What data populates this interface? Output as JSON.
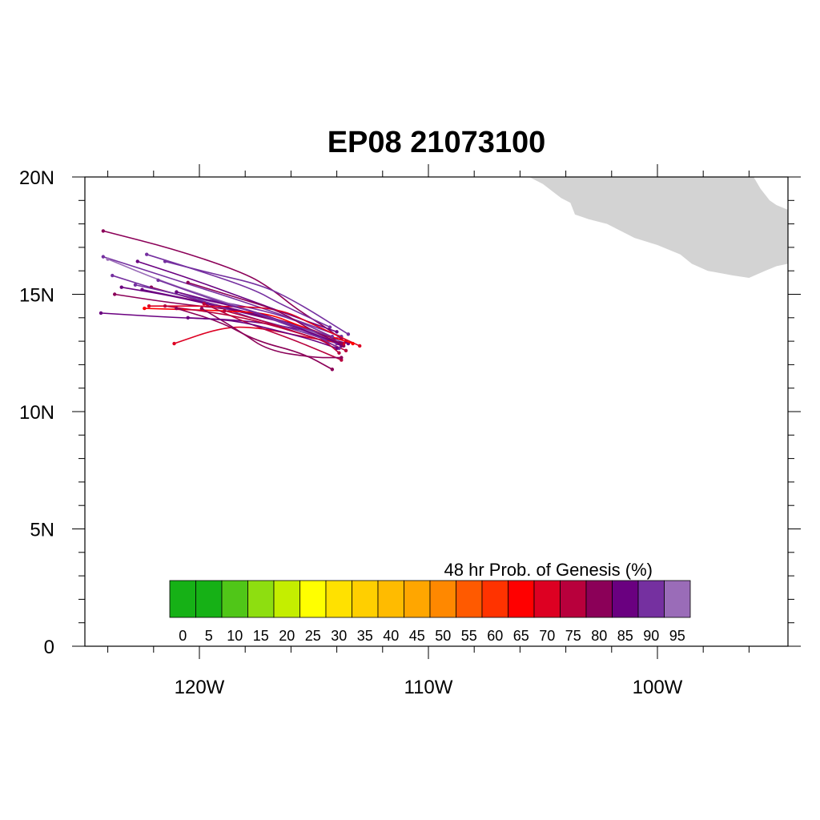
{
  "title": "EP08 21073100",
  "map": {
    "lon_range": [
      -125,
      -94.3
    ],
    "lat_range": [
      0,
      20
    ],
    "lat_labels": [
      "0",
      "5N",
      "10N",
      "15N",
      "20N"
    ],
    "lat_values": [
      0,
      5,
      10,
      15,
      20
    ],
    "lon_labels": [
      "120W",
      "110W",
      "100W"
    ],
    "lon_values": [
      -120,
      -110,
      -100
    ],
    "land_color": "#d3d3d3",
    "land_outline": [
      [
        -105.6,
        20
      ],
      [
        -105.0,
        19.7
      ],
      [
        -104.6,
        19.4
      ],
      [
        -104.2,
        19.1
      ],
      [
        -103.8,
        18.9
      ],
      [
        -103.6,
        18.4
      ],
      [
        -103.0,
        18.2
      ],
      [
        -102.2,
        18.0
      ],
      [
        -101.6,
        17.7
      ],
      [
        -101.0,
        17.4
      ],
      [
        -100.0,
        17.1
      ],
      [
        -99.0,
        16.7
      ],
      [
        -98.5,
        16.3
      ],
      [
        -97.8,
        16.0
      ],
      [
        -96.7,
        15.8
      ],
      [
        -96.0,
        15.7
      ],
      [
        -95.3,
        16.0
      ],
      [
        -94.8,
        16.2
      ],
      [
        -94.3,
        16.3
      ],
      [
        -94.3,
        18.6
      ],
      [
        -94.8,
        18.8
      ],
      [
        -95.1,
        19.0
      ],
      [
        -95.5,
        19.5
      ],
      [
        -95.8,
        20
      ]
    ]
  },
  "legend": {
    "title": "48 hr Prob. of Genesis (%)",
    "labels": [
      "0",
      "5",
      "10",
      "15",
      "20",
      "25",
      "30",
      "35",
      "40",
      "45",
      "50",
      "55",
      "60",
      "65",
      "70",
      "75",
      "80",
      "85",
      "90",
      "95"
    ],
    "colors": [
      "#16b116",
      "#16b116",
      "#50c618",
      "#8ede10",
      "#c4ee00",
      "#ffff00",
      "#ffe100",
      "#ffcf00",
      "#ffbb00",
      "#ffa600",
      "#ff8800",
      "#ff5a00",
      "#ff3300",
      "#ff0000",
      "#dd0022",
      "#b8003c",
      "#8b0058",
      "#6a0080",
      "#7530a0",
      "#9a6cb8"
    ]
  },
  "tracks": [
    {
      "color": "#8b0058",
      "points": [
        [
          -124.2,
          17.7
        ],
        [
          -121.0,
          16.9
        ],
        [
          -118.0,
          15.9
        ],
        [
          -116.8,
          15.2
        ],
        [
          -115.8,
          14.4
        ],
        [
          -114.5,
          13.6
        ],
        [
          -113.8,
          13.1
        ]
      ]
    },
    {
      "color": "#7530a0",
      "points": [
        [
          -124.2,
          16.6
        ],
        [
          -121.0,
          15.6
        ],
        [
          -117.5,
          14.5
        ],
        [
          -115.5,
          13.8
        ],
        [
          -113.8,
          13.2
        ]
      ]
    },
    {
      "color": "#6a0080",
      "points": [
        [
          -124.3,
          14.2
        ],
        [
          -121.0,
          14.0
        ],
        [
          -118.0,
          13.9
        ],
        [
          -115.5,
          13.5
        ],
        [
          -113.6,
          13.0
        ]
      ]
    },
    {
      "color": "#7530a0",
      "points": [
        [
          -123.8,
          15.8
        ],
        [
          -121.2,
          15.0
        ],
        [
          -118.5,
          14.6
        ],
        [
          -116.0,
          14.0
        ],
        [
          -114.0,
          13.1
        ]
      ]
    },
    {
      "color": "#8b0058",
      "points": [
        [
          -123.7,
          15.0
        ],
        [
          -121.0,
          14.6
        ],
        [
          -118.0,
          14.3
        ],
        [
          -115.0,
          13.5
        ],
        [
          -113.7,
          12.9
        ]
      ]
    },
    {
      "color": "#6a0080",
      "points": [
        [
          -123.4,
          15.3
        ],
        [
          -121.0,
          14.9
        ],
        [
          -118.0,
          14.2
        ],
        [
          -115.5,
          13.6
        ],
        [
          -113.8,
          12.8
        ]
      ]
    },
    {
      "color": "#7530a0",
      "points": [
        [
          -122.3,
          16.7
        ],
        [
          -120.0,
          16.0
        ],
        [
          -117.6,
          15.2
        ],
        [
          -116.5,
          14.6
        ],
        [
          -114.3,
          13.6
        ]
      ]
    },
    {
      "color": "#7530a0",
      "points": [
        [
          -121.5,
          16.4
        ],
        [
          -119.5,
          15.9
        ],
        [
          -117.3,
          15.4
        ],
        [
          -115.8,
          14.7
        ],
        [
          -113.5,
          13.3
        ]
      ]
    },
    {
      "color": "#6a0080",
      "points": [
        [
          -122.7,
          16.4
        ],
        [
          -120.5,
          15.7
        ],
        [
          -118.5,
          15.0
        ],
        [
          -116.0,
          14.1
        ],
        [
          -114.0,
          13.4
        ]
      ]
    },
    {
      "color": "#8b0058",
      "points": [
        [
          -122.1,
          15.3
        ],
        [
          -119.5,
          14.6
        ],
        [
          -117.0,
          14.0
        ],
        [
          -115.0,
          13.4
        ],
        [
          -113.7,
          12.8
        ]
      ]
    },
    {
      "color": "#6a0080",
      "points": [
        [
          -122.5,
          15.2
        ],
        [
          -119.0,
          14.5
        ],
        [
          -116.5,
          13.9
        ],
        [
          -114.8,
          13.2
        ],
        [
          -113.5,
          12.9
        ]
      ]
    },
    {
      "color": "#7530a0",
      "points": [
        [
          -122.8,
          15.4
        ],
        [
          -120.0,
          14.8
        ],
        [
          -117.8,
          14.0
        ],
        [
          -115.8,
          13.5
        ],
        [
          -114.0,
          12.9
        ]
      ]
    },
    {
      "color": "#9a6cb8",
      "points": [
        [
          -124.0,
          16.5
        ],
        [
          -121.5,
          15.5
        ],
        [
          -119.0,
          14.7
        ],
        [
          -116.5,
          13.9
        ],
        [
          -114.0,
          13.0
        ]
      ]
    },
    {
      "color": "#dd0022",
      "points": [
        [
          -121.1,
          12.9
        ],
        [
          -119.0,
          13.6
        ],
        [
          -117.5,
          13.6
        ],
        [
          -115.5,
          13.2
        ],
        [
          -113.7,
          12.9
        ]
      ]
    },
    {
      "color": "#dd0022",
      "points": [
        [
          -122.2,
          14.5
        ],
        [
          -119.0,
          14.5
        ],
        [
          -116.5,
          14.4
        ],
        [
          -115.0,
          13.7
        ],
        [
          -113.0,
          12.8
        ]
      ]
    },
    {
      "color": "#ff0000",
      "points": [
        [
          -122.4,
          14.4
        ],
        [
          -119.0,
          14.3
        ],
        [
          -117.0,
          14.2
        ],
        [
          -115.5,
          13.6
        ],
        [
          -113.3,
          12.9
        ]
      ]
    },
    {
      "color": "#b8003c",
      "points": [
        [
          -121.5,
          14.5
        ],
        [
          -118.5,
          14.1
        ],
        [
          -116.5,
          13.6
        ],
        [
          -114.5,
          13.0
        ],
        [
          -113.6,
          12.6
        ]
      ]
    },
    {
      "color": "#b8003c",
      "points": [
        [
          -119.8,
          14.6
        ],
        [
          -118.0,
          13.8
        ],
        [
          -116.0,
          13.1
        ],
        [
          -114.5,
          12.5
        ],
        [
          -113.8,
          12.2
        ]
      ]
    },
    {
      "color": "#8b0058",
      "points": [
        [
          -119.9,
          14.4
        ],
        [
          -118.2,
          13.4
        ],
        [
          -117.0,
          12.6
        ],
        [
          -115.0,
          12.3
        ],
        [
          -113.8,
          12.3
        ]
      ]
    },
    {
      "color": "#8b0058",
      "points": [
        [
          -121.0,
          14.4
        ],
        [
          -119.0,
          13.8
        ],
        [
          -117.5,
          13.0
        ],
        [
          -115.5,
          12.5
        ],
        [
          -114.2,
          11.8
        ]
      ]
    },
    {
      "color": "#7530a0",
      "points": [
        [
          -120.0,
          14.8
        ],
        [
          -118.0,
          14.4
        ],
        [
          -116.5,
          13.8
        ],
        [
          -115.0,
          13.3
        ],
        [
          -113.9,
          12.7
        ]
      ]
    },
    {
      "color": "#6a0080",
      "points": [
        [
          -121.0,
          15.1
        ],
        [
          -119.0,
          14.6
        ],
        [
          -117.0,
          14.1
        ],
        [
          -115.0,
          13.3
        ],
        [
          -113.9,
          12.9
        ]
      ]
    },
    {
      "color": "#8b0058",
      "points": [
        [
          -120.5,
          15.5
        ],
        [
          -118.5,
          14.9
        ],
        [
          -116.5,
          14.3
        ],
        [
          -115.0,
          13.4
        ],
        [
          -113.8,
          12.9
        ]
      ]
    },
    {
      "color": "#7530a0",
      "points": [
        [
          -121.8,
          15.6
        ],
        [
          -119.5,
          14.8
        ],
        [
          -117.5,
          14.2
        ],
        [
          -116.0,
          13.7
        ],
        [
          -114.2,
          13.2
        ]
      ]
    },
    {
      "color": "#6a0080",
      "points": [
        [
          -120.5,
          14.0
        ],
        [
          -118.5,
          13.9
        ],
        [
          -116.8,
          13.5
        ],
        [
          -115.2,
          13.1
        ],
        [
          -114.0,
          12.7
        ]
      ]
    },
    {
      "color": "#b8003c",
      "points": [
        [
          -118.9,
          14.3
        ],
        [
          -117.0,
          13.8
        ],
        [
          -115.5,
          13.3
        ],
        [
          -114.5,
          13.0
        ],
        [
          -113.9,
          12.5
        ]
      ]
    }
  ]
}
